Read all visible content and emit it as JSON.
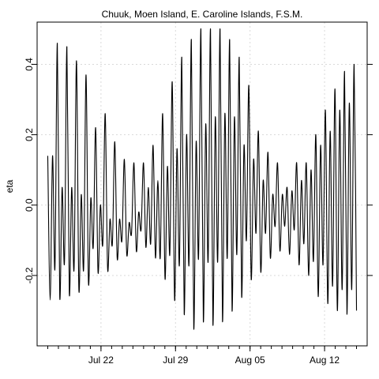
{
  "chart_data": {
    "type": "line",
    "title": "Chuuk, Moen Island, E. Caroline Islands, F.S.M.",
    "xlabel": "",
    "ylabel": "eta",
    "x_start": "2012-07-17",
    "x_end": "2012-08-15",
    "xlim": [
      "2012-07-16",
      "2012-08-16"
    ],
    "ylim": [
      -0.4,
      0.52
    ],
    "x_ticks": [
      {
        "date": "2012-07-22",
        "label": "Jul 22"
      },
      {
        "date": "2012-07-29",
        "label": "Jul 29"
      },
      {
        "date": "2012-08-05",
        "label": "Aug 05"
      },
      {
        "date": "2012-08-12",
        "label": "Aug 12"
      }
    ],
    "y_ticks": [
      {
        "value": -0.2,
        "label": "-0.2"
      },
      {
        "value": 0.0,
        "label": "0.0"
      },
      {
        "value": 0.2,
        "label": "0.2"
      },
      {
        "value": 0.4,
        "label": "0.4"
      }
    ],
    "grid": true,
    "line_color": "#000000",
    "grid_color": "#d9d9d9",
    "series": [
      {
        "name": "",
        "values": [
          0.14,
          -0.27,
          0.14,
          -0.18,
          0.46,
          -0.26,
          0.05,
          -0.16,
          0.45,
          -0.25,
          0.05,
          -0.18,
          0.41,
          -0.24,
          0.03,
          -0.18,
          0.37,
          -0.22,
          0.02,
          -0.12,
          0.22,
          -0.19,
          0.0,
          -0.11,
          0.26,
          -0.18,
          -0.04,
          -0.11,
          0.18,
          -0.15,
          -0.04,
          -0.1,
          0.13,
          -0.14,
          -0.05,
          -0.08,
          0.12,
          -0.13,
          -0.02,
          -0.07,
          0.12,
          -0.12,
          0.05,
          -0.11,
          0.17,
          -0.15,
          0.07,
          -0.15,
          0.26,
          -0.21,
          0.11,
          -0.14,
          0.35,
          -0.27,
          0.16,
          -0.17,
          0.42,
          -0.31,
          0.2,
          -0.17,
          0.47,
          -0.35,
          0.18,
          -0.15,
          0.5,
          -0.33,
          0.23,
          -0.16,
          0.5,
          -0.34,
          0.25,
          -0.16,
          0.5,
          -0.33,
          0.26,
          -0.15,
          0.47,
          -0.3,
          0.25,
          -0.14,
          0.42,
          -0.26,
          0.17,
          -0.1,
          0.34,
          -0.21,
          0.13,
          -0.08,
          0.21,
          -0.19,
          0.07,
          -0.08,
          0.15,
          -0.15,
          0.03,
          -0.06,
          0.12,
          -0.13,
          0.03,
          -0.06,
          0.05,
          -0.14,
          0.04,
          -0.07,
          0.12,
          -0.17,
          0.07,
          -0.11,
          0.12,
          -0.2,
          0.1,
          -0.16,
          0.2,
          -0.26,
          0.17,
          -0.17,
          0.27,
          -0.28,
          0.21,
          -0.23,
          0.33,
          -0.3,
          0.27,
          -0.24,
          0.38,
          -0.31,
          0.29,
          -0.24,
          0.4,
          -0.3
        ]
      }
    ]
  }
}
